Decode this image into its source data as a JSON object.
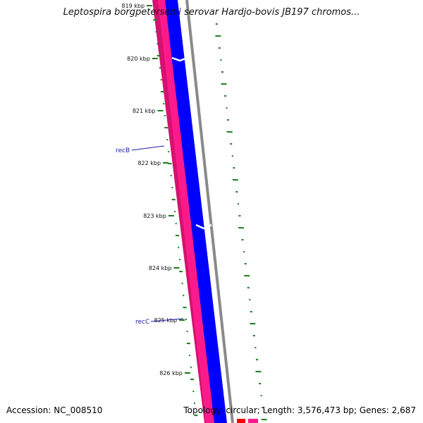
{
  "title": "Leptospira borgpetersenii serovar Hardjo-bovis JB197 chromos...",
  "footer": {
    "accession": "Accession: NC_008510",
    "summary": "Topology: circular; Length: 3,576,473 bp; Genes: 2,687"
  },
  "kbp_labels": [
    "819 kbp",
    "820 kbp",
    "821 kbp",
    "822 kbp",
    "823 kbp",
    "824 kbp",
    "825 kbp",
    "826 kbp"
  ],
  "gene_labels": [
    "recB",
    "recC"
  ],
  "colors": {
    "outer_pink": "#ff1a8c",
    "inner_pink": "#d6116f",
    "cds_blue": "#0000ff",
    "backbone_grey": "#8a8a8a",
    "gc_green": "#1f7a1f",
    "gene_label_blue": "#1a1aa6",
    "bottom_red": "#ff0000"
  }
}
